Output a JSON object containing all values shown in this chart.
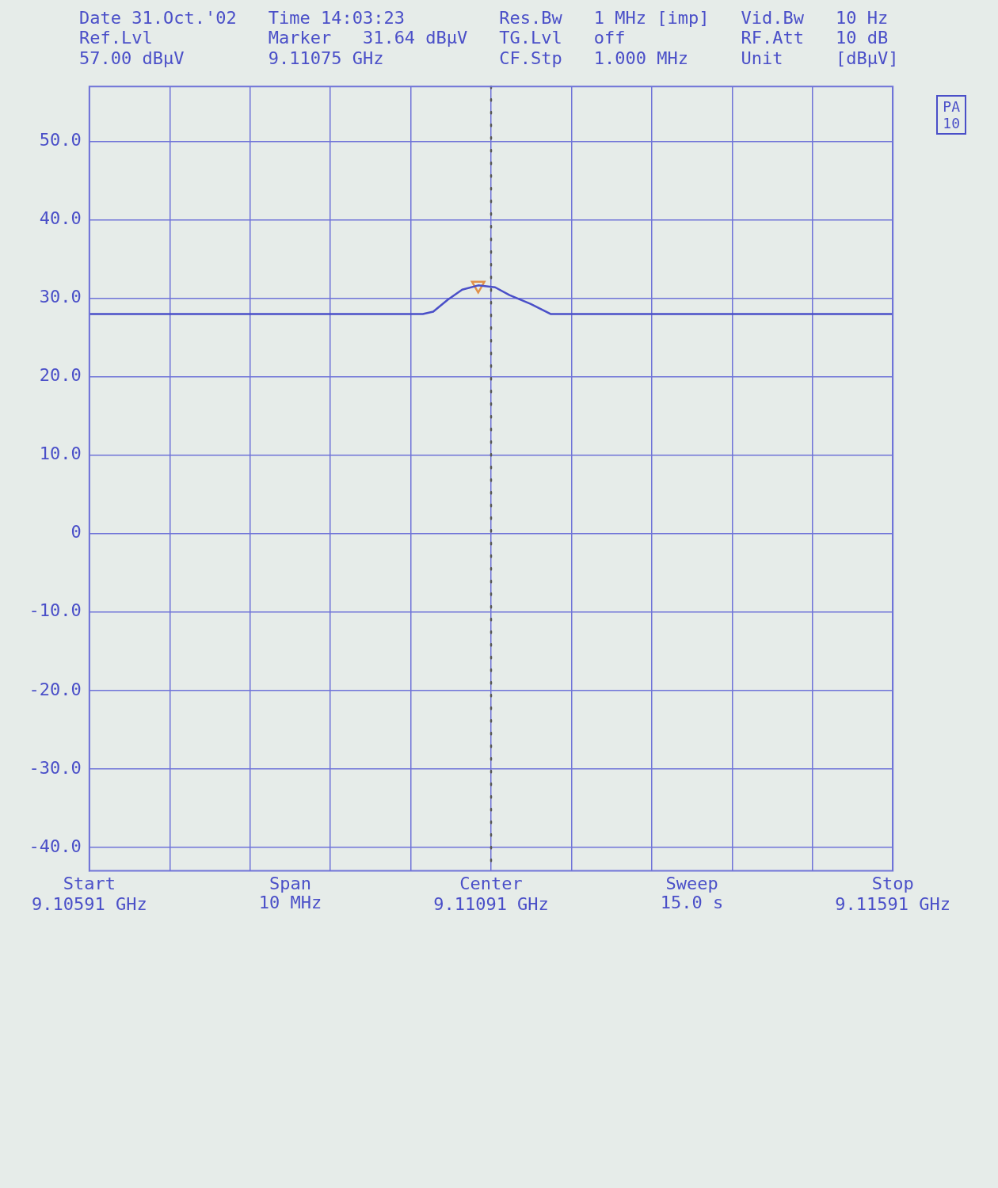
{
  "chart_data": {
    "type": "line",
    "annotations": [
      "Date 31.Oct.'02\nRef.Lvl\n57.00 dBµV",
      "Time 14:03:23\nMarker   31.64 dBµV\n9.11075 GHz",
      "Res.Bw\nTG.Lvl\nCF.Stp",
      "1 MHz [imp]\noff\n1.000 MHz",
      "Vid.Bw\nRF.Att\nUnit",
      "10 Hz\n10 dB\n[dBµV]",
      "PA\n10",
      "Start",
      "Span\n10 MHz",
      "Center",
      "Sweep\n15.0 s",
      "Stop"
    ],
    "series": [
      {
        "type": "line",
        "color": "#4a4fc8",
        "marker": "none",
        "x": [
          9.10591,
          9.11006,
          9.11019,
          9.11037,
          9.11055,
          9.11075,
          9.11096,
          9.11114,
          9.1114,
          9.11165,
          9.11591
        ],
        "values": [
          28.0,
          28.0,
          28.3,
          29.8,
          31.1,
          31.64,
          31.4,
          30.4,
          29.3,
          28.0,
          28.0
        ]
      },
      {
        "type": "scatter",
        "color": "#e0904a",
        "marker": "triangle",
        "x": [
          9.11075
        ],
        "values": [
          31.64
        ]
      }
    ],
    "xlim": [
      9.10591,
      9.11591
    ],
    "xticks": [
      {
        "value": 9.10591,
        "label": "9.10591 GHz"
      },
      {
        "value": 9.10691,
        "label": null
      },
      {
        "value": 9.10791,
        "label": null
      },
      {
        "value": 9.10891,
        "label": null
      },
      {
        "value": 9.10991,
        "label": null
      },
      {
        "value": 9.11091,
        "label": "9.11091 GHz"
      },
      {
        "value": 9.11191,
        "label": null
      },
      {
        "value": 9.11291,
        "label": null
      },
      {
        "value": 9.11391,
        "label": null
      },
      {
        "value": 9.11491,
        "label": null
      },
      {
        "value": 9.11591,
        "label": "9.11591 GHz"
      }
    ],
    "ylim": [
      -43,
      57
    ],
    "yticks": [
      {
        "value": -40,
        "label": "-40.0"
      },
      {
        "value": -30,
        "label": "-30.0"
      },
      {
        "value": -20,
        "label": "-20.0"
      },
      {
        "value": -10,
        "label": "-10.0"
      },
      {
        "value": 0,
        "label": "0"
      },
      {
        "value": 10,
        "label": "10.0"
      },
      {
        "value": 20,
        "label": "20.0"
      },
      {
        "value": 30,
        "label": "30.0"
      },
      {
        "value": 40,
        "label": "40.0"
      },
      {
        "value": 50,
        "label": "50.0"
      }
    ],
    "ref_lines": [
      {
        "axis": "x",
        "value": 9.11091,
        "label": null,
        "line_style": "dotted",
        "color": "#555555"
      }
    ],
    "grid": true
  }
}
